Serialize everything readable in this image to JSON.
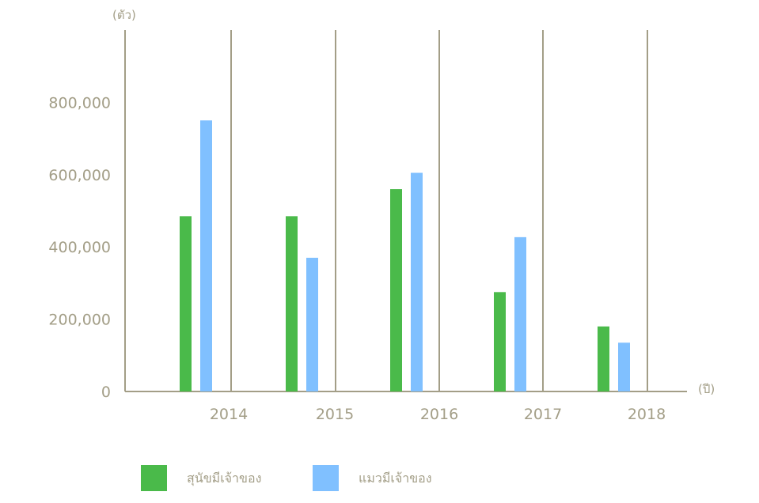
{
  "chart_data": {
    "type": "bar",
    "y_unit_label": "(ตัว)",
    "x_unit_label": "(ปี)",
    "categories": [
      "2014",
      "2015",
      "2016",
      "2017",
      "2018"
    ],
    "series": [
      {
        "name": "สุนัขมีเจ้าของ",
        "color": "#4aba4a",
        "values": [
          485000,
          485000,
          560000,
          275000,
          180000
        ]
      },
      {
        "name": "แมวมีเจ้าของ",
        "color": "#80c0ff",
        "values": [
          750000,
          370000,
          605000,
          427000,
          135000
        ]
      }
    ],
    "y_ticks": [
      0,
      200000,
      400000,
      600000,
      800000
    ],
    "y_tick_labels": [
      "0",
      "200,000",
      "400,000",
      "600,000",
      "800,000"
    ],
    "ylim": [
      0,
      1000000
    ],
    "grid": "vertical",
    "legend_position": "bottom-left",
    "axis_color": "#a39e87"
  }
}
